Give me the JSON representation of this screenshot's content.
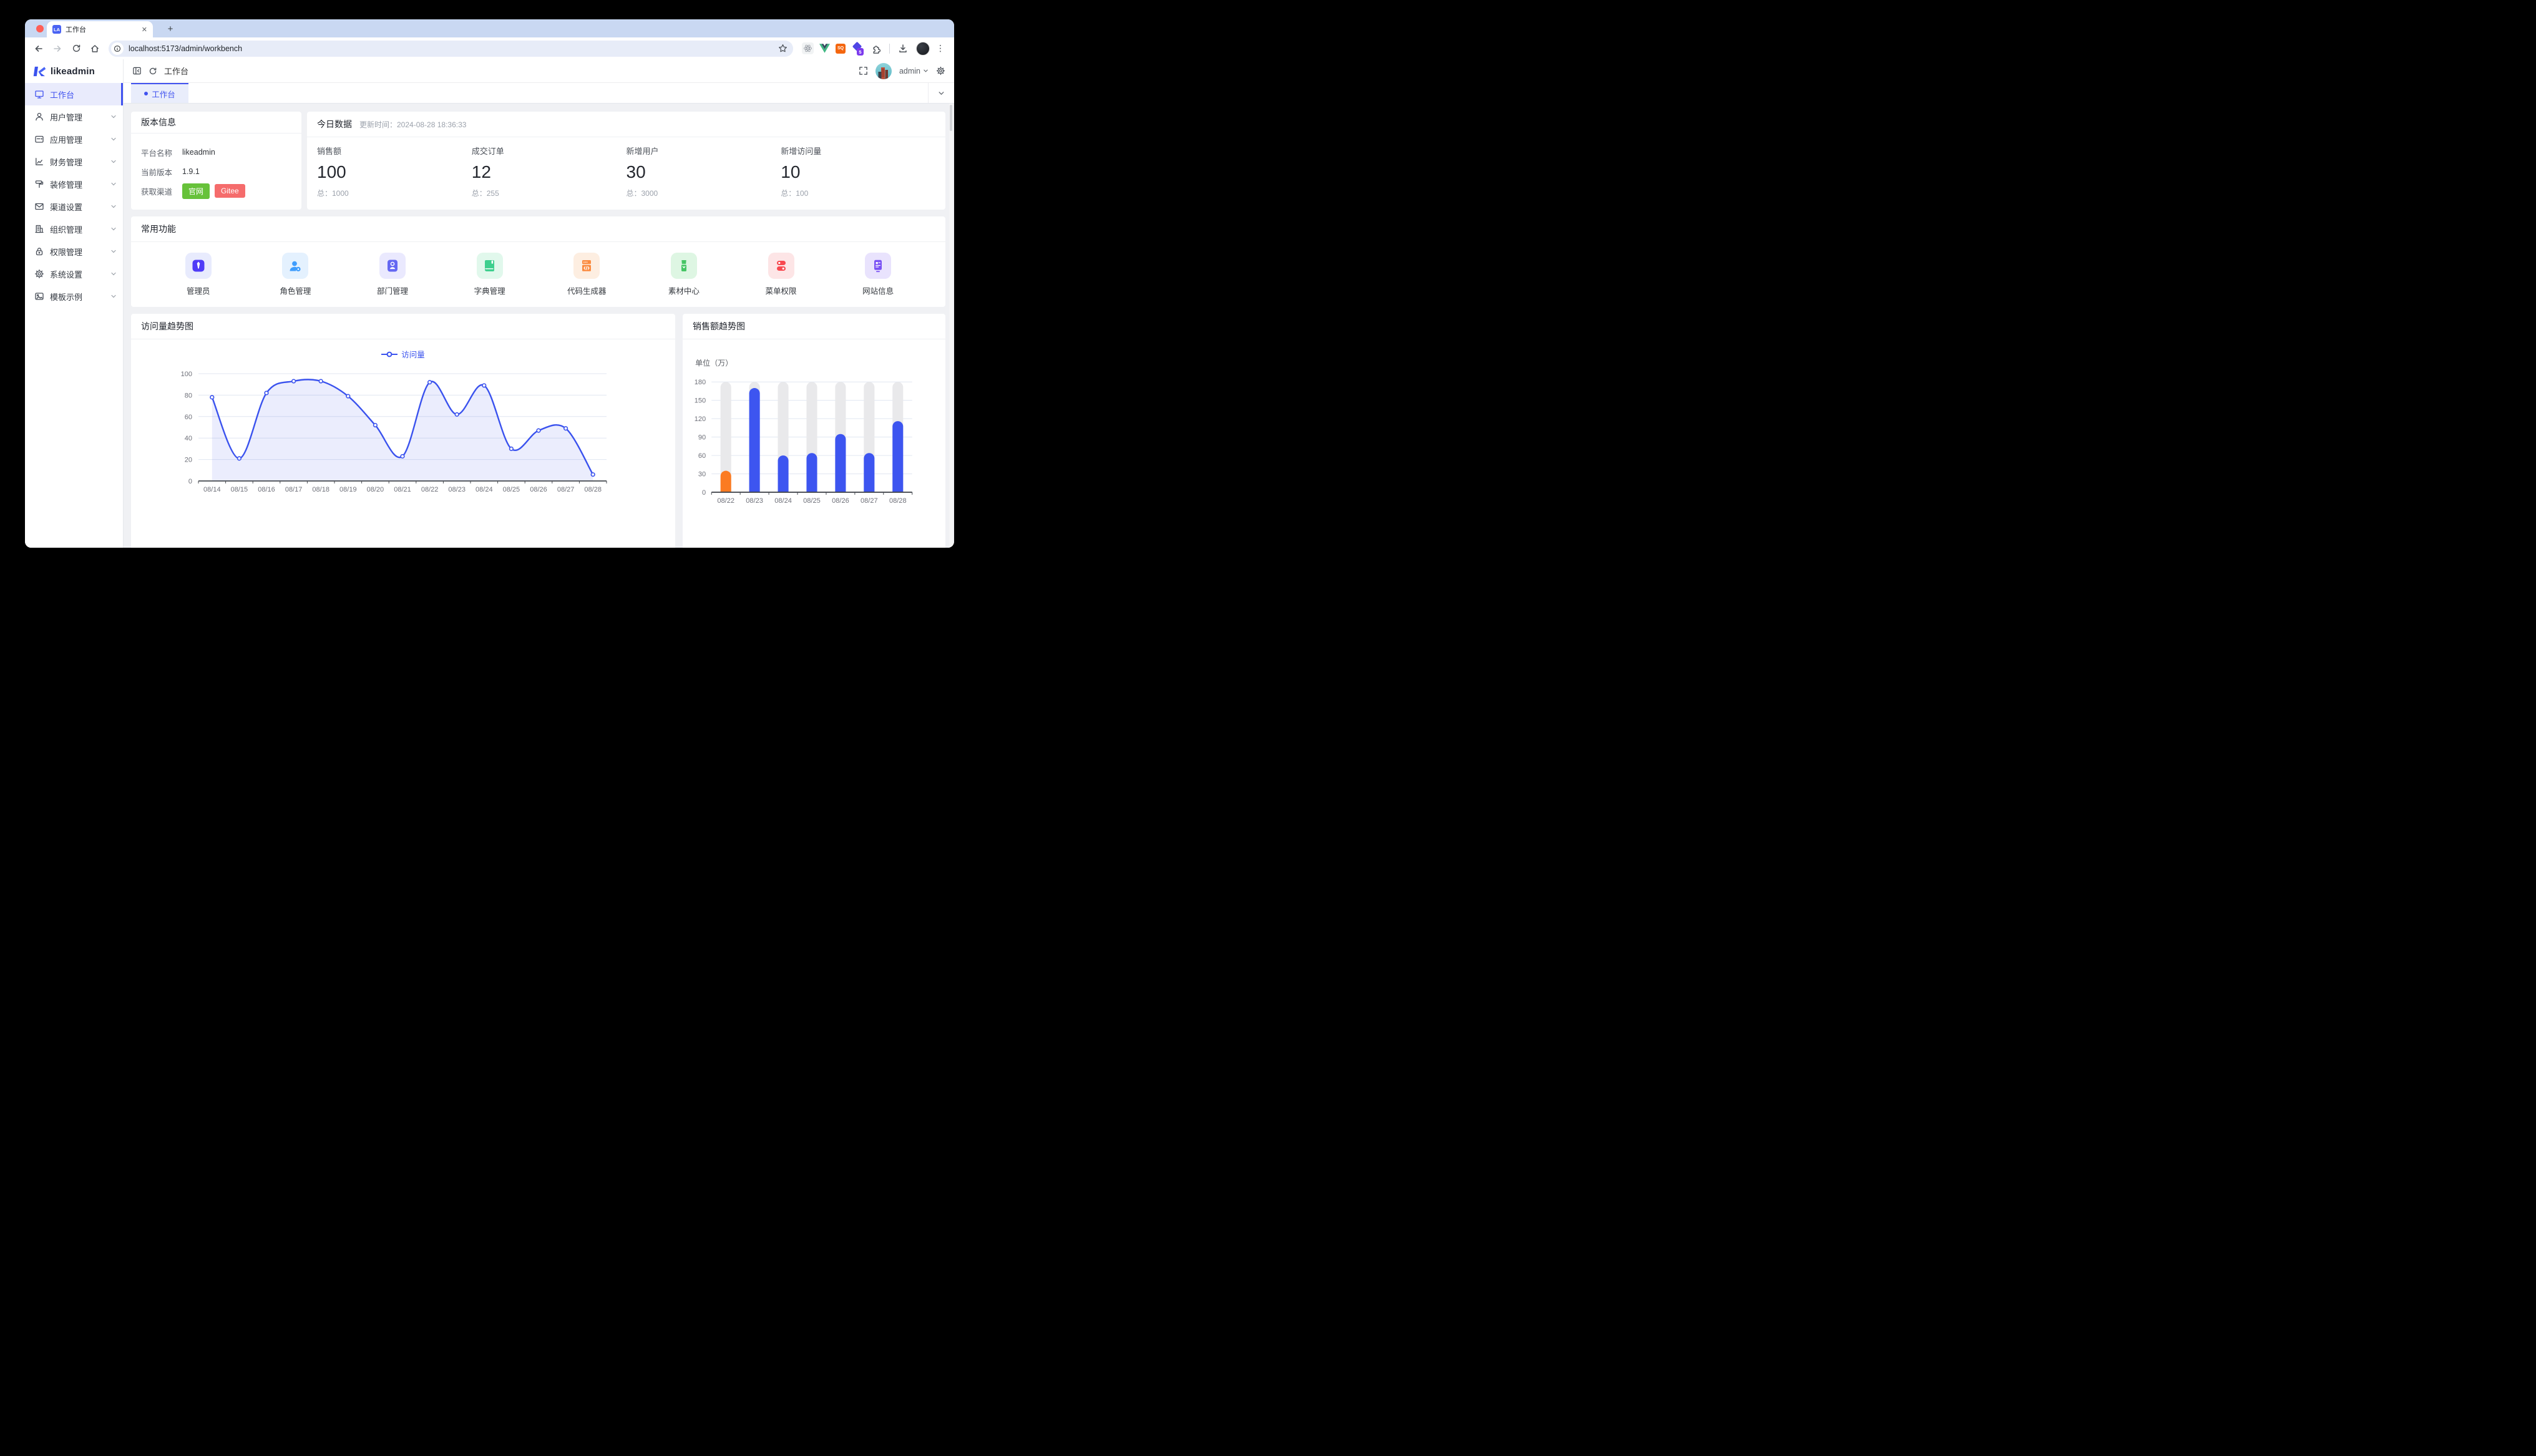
{
  "browser": {
    "tab_title": "工作台",
    "favicon_text": "LA",
    "url": "localhost:5173/admin/workbench",
    "ext_sq_label": "SQ",
    "ext_badge": "5",
    "window_controls": {
      "close": "#ff5f57",
      "minimize": "#febc2e",
      "zoom": "#28c840"
    }
  },
  "sidebar": {
    "logo_text": "likeadmin",
    "items": [
      {
        "label": "工作台",
        "icon": "monitor-icon",
        "active": true
      },
      {
        "label": "用户管理",
        "icon": "user-icon"
      },
      {
        "label": "应用管理",
        "icon": "app-icon"
      },
      {
        "label": "财务管理",
        "icon": "finance-icon"
      },
      {
        "label": "装修管理",
        "icon": "decorate-icon"
      },
      {
        "label": "渠道设置",
        "icon": "mail-icon"
      },
      {
        "label": "组织管理",
        "icon": "org-icon"
      },
      {
        "label": "权限管理",
        "icon": "lock-icon"
      },
      {
        "label": "系统设置",
        "icon": "gear-icon"
      },
      {
        "label": "模板示例",
        "icon": "template-icon"
      }
    ]
  },
  "header": {
    "breadcrumb": "工作台",
    "username": "admin"
  },
  "tabbar": {
    "active_tab": "工作台"
  },
  "version_card": {
    "title": "版本信息",
    "rows": [
      {
        "label": "平台名称",
        "value": "likeadmin"
      },
      {
        "label": "当前版本",
        "value": "1.9.1"
      },
      {
        "label": "获取渠道"
      }
    ],
    "buttons": [
      {
        "label": "官网",
        "color": "#67c23a"
      },
      {
        "label": "Gitee",
        "color": "#f56c6c"
      }
    ]
  },
  "today_card": {
    "title": "今日数据",
    "updated": "更新时间：2024-08-28 18:36:33",
    "stats": [
      {
        "label": "销售额",
        "value": "100",
        "total": "总：1000"
      },
      {
        "label": "成交订单",
        "value": "12",
        "total": "总：255"
      },
      {
        "label": "新增用户",
        "value": "30",
        "total": "总：3000"
      },
      {
        "label": "新增访问量",
        "value": "10",
        "total": "总：100"
      }
    ]
  },
  "functions_card": {
    "title": "常用功能",
    "items": [
      {
        "label": "管理员",
        "icon": "admin-icon",
        "bg": "#e8ebfd",
        "color": "#4f3cf7"
      },
      {
        "label": "角色管理",
        "icon": "role-icon",
        "bg": "#e4f1fe",
        "color": "#3f9dfd"
      },
      {
        "label": "部门管理",
        "icon": "dept-icon",
        "bg": "#eae9fe",
        "color": "#6467f2"
      },
      {
        "label": "字典管理",
        "icon": "dict-icon",
        "bg": "#e1f8ec",
        "color": "#3ecf8e"
      },
      {
        "label": "代码生成器",
        "icon": "codegen-icon",
        "bg": "#fdeee1",
        "color": "#fb8b40"
      },
      {
        "label": "素材中心",
        "icon": "material-icon",
        "bg": "#def6e3",
        "color": "#46c565"
      },
      {
        "label": "菜单权限",
        "icon": "menu-perm-icon",
        "bg": "#fde5e6",
        "color": "#f8484f"
      },
      {
        "label": "网站信息",
        "icon": "website-icon",
        "bg": "#e9e3fd",
        "color": "#7a52f4"
      }
    ]
  },
  "chart_data": [
    {
      "type": "line",
      "title": "访问量趋势图",
      "legend": "访问量",
      "categories": [
        "08/14",
        "08/15",
        "08/16",
        "08/17",
        "08/18",
        "08/19",
        "08/20",
        "08/21",
        "08/22",
        "08/23",
        "08/24",
        "08/25",
        "08/26",
        "08/27",
        "08/28"
      ],
      "values": [
        78,
        21,
        82,
        93,
        93,
        79,
        52,
        23,
        92,
        62,
        89,
        30,
        47,
        49,
        6
      ],
      "ylim": [
        0,
        100
      ],
      "yticks": [
        0,
        20,
        40,
        60,
        80,
        100
      ],
      "smooth": true,
      "grid": true,
      "line_color": "#3a52ee",
      "area_color": "rgba(58,82,238,0.10)",
      "grid_color": "#e0e6f1",
      "axis_color": "#45494f",
      "axis_label_color": "#6e7079"
    },
    {
      "type": "bar",
      "title": "销售额趋势图",
      "unit_label": "单位（万）",
      "categories": [
        "08/22",
        "08/23",
        "08/24",
        "08/25",
        "08/26",
        "08/27",
        "08/28"
      ],
      "values": [
        35,
        170,
        60,
        64,
        95,
        64,
        116
      ],
      "ylim": [
        0,
        180
      ],
      "yticks": [
        0,
        30,
        60,
        90,
        120,
        150,
        180
      ],
      "colors": [
        "#fb7b22",
        "#3d55f0",
        "#3d55f0",
        "#3d55f0",
        "#3d55f0",
        "#3d55f0",
        "#3d55f0"
      ],
      "track_color": "#e9e9eb",
      "grid_color": "#e0e6f1",
      "axis_color": "#45494f",
      "axis_label_color": "#6e7079"
    }
  ]
}
